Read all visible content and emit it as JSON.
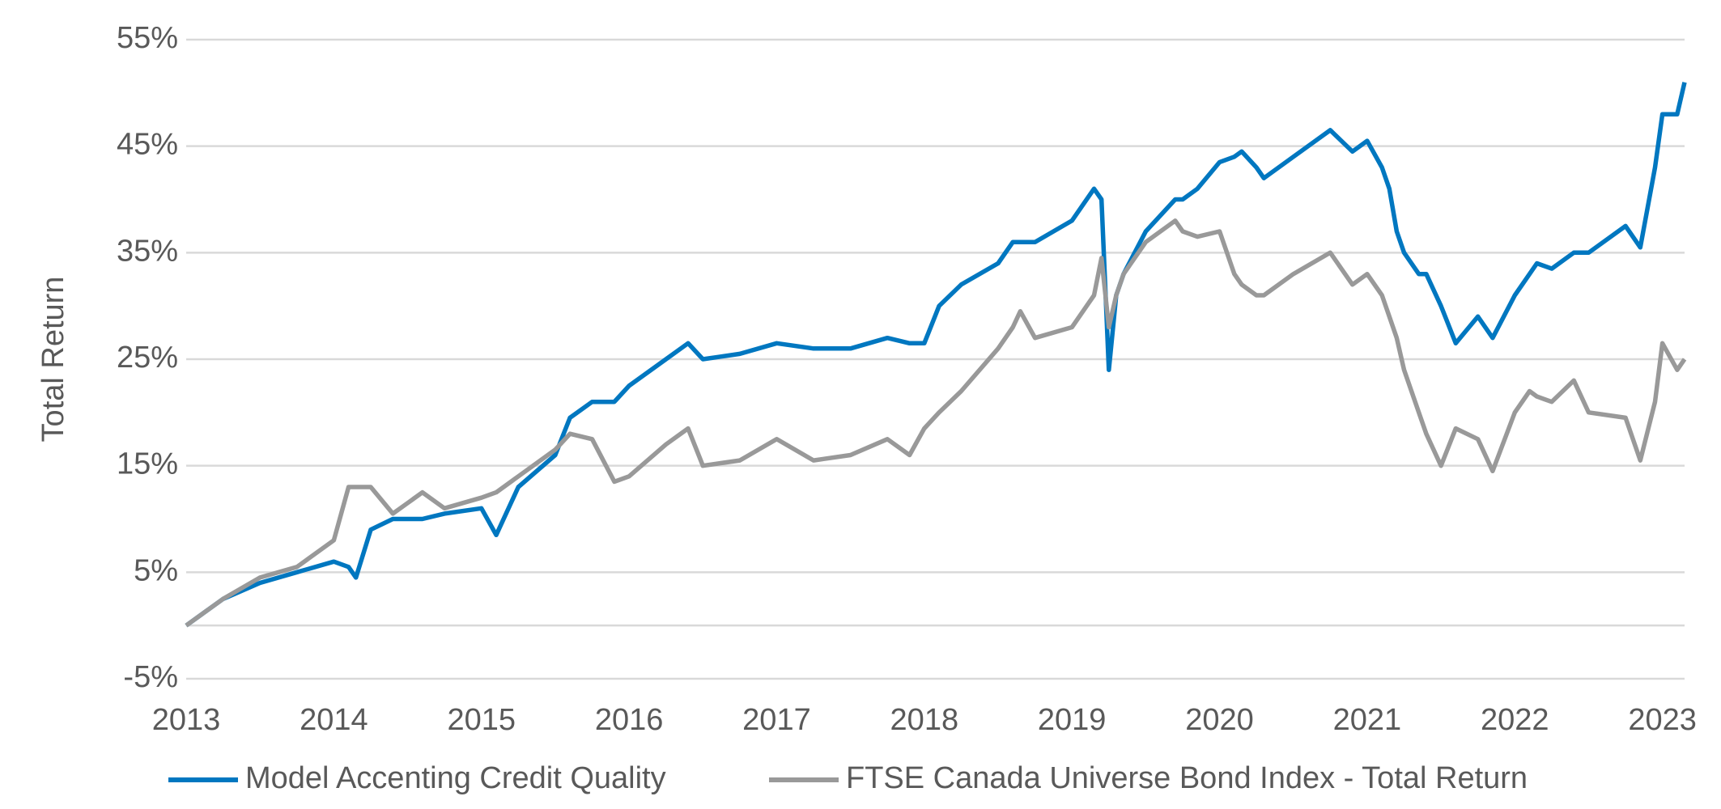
{
  "chart_data": {
    "type": "line",
    "y_label": "Total Return",
    "x": [
      2013,
      2013.25,
      2013.5,
      2013.75,
      2014,
      2014.1,
      2014.15,
      2014.25,
      2014.4,
      2014.5,
      2014.6,
      2014.75,
      2015,
      2015.1,
      2015.25,
      2015.5,
      2015.6,
      2015.75,
      2015.9,
      2016,
      2016.25,
      2016.4,
      2016.5,
      2016.75,
      2017,
      2017.25,
      2017.5,
      2017.75,
      2017.9,
      2018,
      2018.1,
      2018.25,
      2018.5,
      2018.6,
      2018.65,
      2018.75,
      2019,
      2019.15,
      2019.2,
      2019.25,
      2019.3,
      2019.35,
      2019.5,
      2019.7,
      2019.75,
      2019.85,
      2020,
      2020.1,
      2020.15,
      2020.25,
      2020.3,
      2020.5,
      2020.75,
      2020.9,
      2021,
      2021.1,
      2021.15,
      2021.2,
      2021.25,
      2021.35,
      2021.4,
      2021.5,
      2021.6,
      2021.75,
      2021.85,
      2022,
      2022.1,
      2022.15,
      2022.25,
      2022.4,
      2022.5,
      2022.75,
      2022.85,
      2022.95,
      2023,
      2023.1,
      2023.15
    ],
    "series": [
      {
        "name": "Model Accenting Credit Quality",
        "color": "#0077c0",
        "values": [
          0,
          2.5,
          4,
          5,
          6,
          5.5,
          4.5,
          9,
          10,
          10,
          10,
          10.5,
          11,
          8.5,
          13,
          16,
          19.5,
          21,
          21,
          22.5,
          25,
          26.5,
          25,
          25.5,
          26.5,
          26,
          26,
          27,
          26.5,
          26.5,
          30,
          32,
          34,
          36,
          36,
          36,
          38,
          41,
          40,
          24,
          31,
          33,
          37,
          40,
          40,
          41,
          43.5,
          44,
          44.5,
          43,
          42,
          44,
          46.5,
          44.5,
          45.5,
          43,
          41,
          37,
          35,
          33,
          33,
          30,
          26.5,
          29,
          27,
          31,
          33,
          34,
          33.5,
          35,
          35,
          37.5,
          35.5,
          43,
          48,
          48,
          51
        ]
      },
      {
        "name": "FTSE Canada Universe Bond Index - Total Return",
        "color": "#999999",
        "values": [
          0,
          2.5,
          4.5,
          5.5,
          8,
          13,
          13,
          13,
          10.5,
          11.5,
          12.5,
          11,
          12,
          12.5,
          14,
          16.5,
          18,
          17.5,
          13.5,
          14,
          17,
          18.5,
          15,
          15.5,
          17.5,
          15.5,
          16,
          17.5,
          16,
          18.5,
          20,
          22,
          26,
          28,
          29.5,
          27,
          28,
          31,
          34.5,
          28,
          31,
          33,
          36,
          38,
          37,
          36.5,
          37,
          33,
          32,
          31,
          31,
          33,
          35,
          32,
          33,
          31,
          29,
          27,
          24,
          20,
          18,
          15,
          18.5,
          17.5,
          14.5,
          20,
          22,
          21.5,
          21,
          23,
          20,
          19.5,
          15.5,
          21,
          26.5,
          24,
          25
        ]
      }
    ],
    "xlim": [
      2013,
      2023.15
    ],
    "xticks": [
      2013,
      2014,
      2015,
      2016,
      2017,
      2018,
      2019,
      2020,
      2021,
      2022,
      2023
    ],
    "ylim": [
      -5,
      55
    ],
    "yticks": [
      {
        "value": 55,
        "label": "55%"
      },
      {
        "value": 45,
        "label": "45%"
      },
      {
        "value": 35,
        "label": "35%"
      },
      {
        "value": 25,
        "label": "25%"
      },
      {
        "value": 15,
        "label": "15%"
      },
      {
        "value": 5,
        "label": "5%"
      },
      {
        "value": -5,
        "label": "-5%"
      }
    ],
    "grid": true,
    "legend": "bottom"
  }
}
